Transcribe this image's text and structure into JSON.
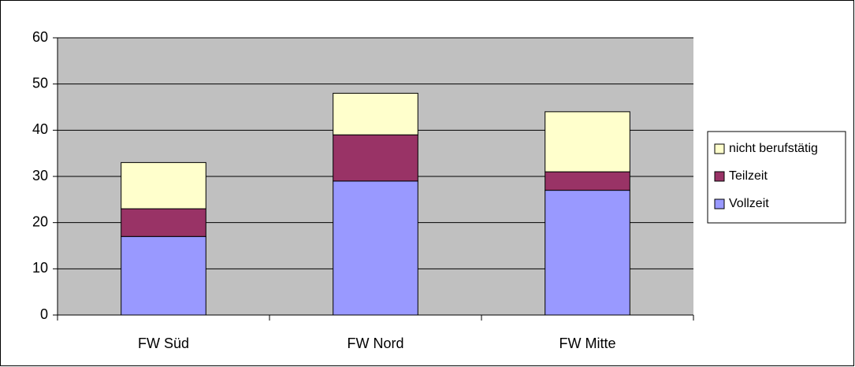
{
  "chart_data": {
    "type": "bar",
    "stacked": true,
    "categories": [
      "FW Süd",
      "FW Nord",
      "FW Mitte"
    ],
    "series": [
      {
        "name": "Vollzeit",
        "color": "#9999ff",
        "values": [
          17,
          29,
          27
        ]
      },
      {
        "name": "Teilzeit",
        "color": "#993366",
        "values": [
          6,
          10,
          4
        ]
      },
      {
        "name": "nicht berufstätig",
        "color": "#ffffcc",
        "values": [
          10,
          9,
          13
        ]
      }
    ],
    "ylim": [
      0,
      60
    ],
    "yticks": [
      0,
      10,
      20,
      30,
      40,
      50,
      60
    ],
    "grid": true,
    "legend": "right"
  }
}
